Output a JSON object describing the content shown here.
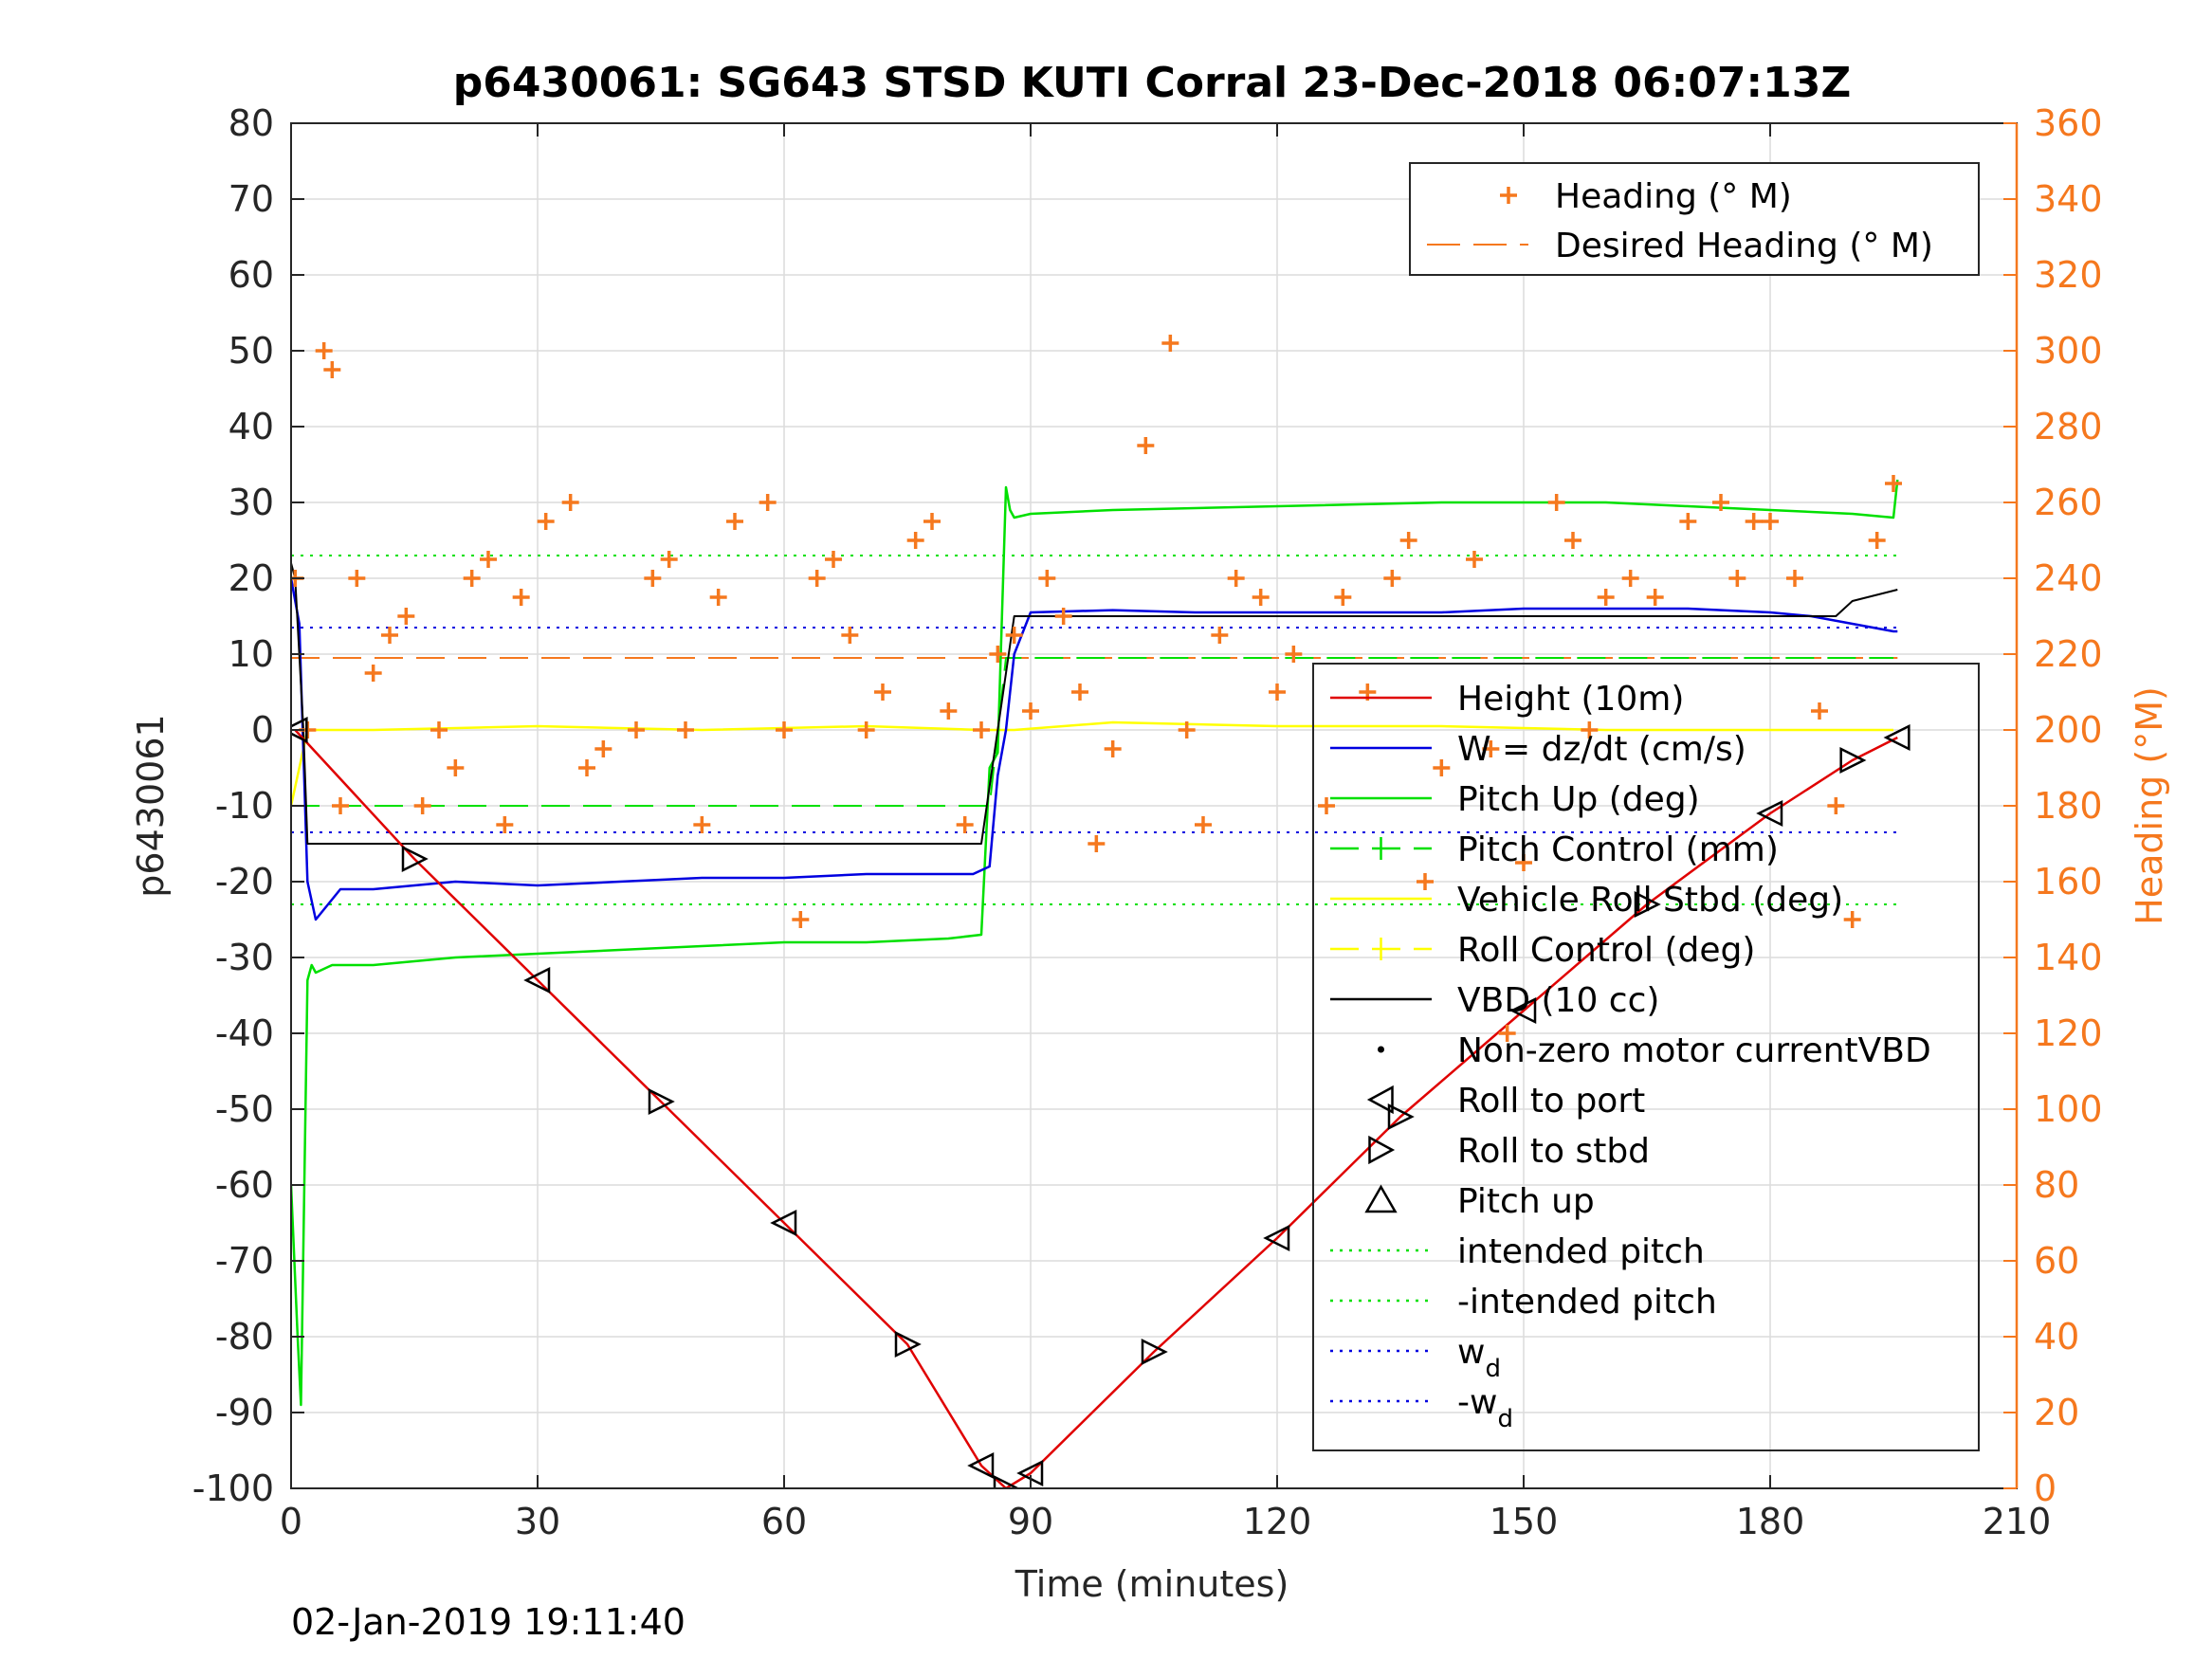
{
  "chart_data": {
    "type": "line",
    "title": "p6430061: SG643 STSD KUTI Corral 23-Dec-2018 06:07:13Z",
    "xlabel": "Time (minutes)",
    "ylabel_left": "p6430061",
    "ylabel_right": "Heading (°M)",
    "footer_timestamp": "02-Jan-2019 19:11:40",
    "xlim": [
      0,
      210
    ],
    "ylim_left": [
      -100,
      80
    ],
    "ylim_right": [
      0,
      360
    ],
    "xticks": [
      0,
      30,
      60,
      90,
      120,
      150,
      180,
      210
    ],
    "yticks_left": [
      -100,
      -90,
      -80,
      -70,
      -60,
      -50,
      -40,
      -30,
      -20,
      -10,
      0,
      10,
      20,
      30,
      40,
      50,
      60,
      70,
      80
    ],
    "yticks_right": [
      0,
      20,
      40,
      60,
      80,
      100,
      120,
      140,
      160,
      180,
      200,
      220,
      240,
      260,
      280,
      300,
      320,
      340,
      360
    ],
    "grid": true,
    "colors": {
      "heading": "#f5781e",
      "height": "#e00000",
      "w": "#0000e0",
      "pitch": "#00e000",
      "roll": "#ffff00",
      "vbd": "#000000",
      "axis_right": "#f5781e"
    },
    "legend_right_axis": {
      "placement": "top-right",
      "entries": [
        {
          "label": "Heading (° M)",
          "marker": "plus",
          "color": "#f5781e"
        },
        {
          "label": "Desired Heading (° M)",
          "marker": "dash",
          "color": "#f5781e"
        }
      ]
    },
    "legend_left_axis": {
      "placement": "right",
      "entries": [
        {
          "label": "Height (10m)",
          "style": "solid",
          "color": "#e00000"
        },
        {
          "label": "W = dz/dt (cm/s)",
          "style": "solid",
          "color": "#0000e0"
        },
        {
          "label": "Pitch Up (deg)",
          "style": "solid",
          "color": "#00e000"
        },
        {
          "label": "Pitch Control (mm)",
          "style": "dashed",
          "color": "#00e000"
        },
        {
          "label": "Vehicle Roll Stbd (deg)",
          "style": "solid",
          "color": "#ffff00"
        },
        {
          "label": "Roll Control (deg)",
          "style": "dashed",
          "color": "#ffff00"
        },
        {
          "label": "VBD (10 cc)",
          "style": "solid",
          "color": "#000000"
        },
        {
          "label": "Non-zero motor currentVBD",
          "style": "dot",
          "color": "#000000"
        },
        {
          "label": "Roll to port",
          "style": "marker-left",
          "color": "#000000"
        },
        {
          "label": "Roll to stbd",
          "style": "marker-right",
          "color": "#000000"
        },
        {
          "label": "Pitch up",
          "style": "marker-up",
          "color": "#000000"
        },
        {
          "label": "intended pitch",
          "style": "dotted",
          "color": "#00e000"
        },
        {
          "label": "-intended pitch",
          "style": "dotted",
          "color": "#00e000"
        },
        {
          "label": "w",
          "sub": "d",
          "style": "dotted",
          "color": "#0000e0"
        },
        {
          "label": "-w",
          "sub": "d",
          "style": "dotted",
          "color": "#0000e0"
        }
      ]
    },
    "reference_lines": {
      "intended_pitch": 23,
      "neg_intended_pitch": -23,
      "w_d": 13.5,
      "neg_w_d": -13.5,
      "desired_heading": 219
    },
    "series": {
      "height": {
        "x": [
          0.5,
          15,
          30,
          45,
          60,
          75,
          84,
          87,
          90,
          105,
          120,
          135,
          150,
          165,
          180,
          190,
          195.5
        ],
        "y": [
          0,
          -17,
          -33,
          -49,
          -65,
          -81,
          -97,
          -100,
          -98,
          -82,
          -67,
          -51,
          -37,
          -23,
          -11,
          -4,
          -1
        ]
      },
      "w": {
        "x": [
          0,
          1,
          2,
          3,
          6,
          10,
          20,
          30,
          40,
          50,
          60,
          70,
          80,
          83,
          85,
          86,
          87,
          88,
          90,
          100,
          110,
          120,
          130,
          140,
          150,
          160,
          170,
          180,
          185,
          190,
          195,
          195.5
        ],
        "y": [
          20,
          14,
          -20,
          -25,
          -21,
          -21,
          -20,
          -20.5,
          -20,
          -19.5,
          -19.5,
          -19,
          -19,
          -19,
          -18,
          -6,
          0,
          10,
          15.5,
          15.8,
          15.5,
          15.5,
          15.5,
          15.5,
          16,
          16,
          16,
          15.5,
          15,
          14,
          13,
          13
        ]
      },
      "pitch": {
        "x": [
          0,
          0.8,
          1.2,
          2,
          2.5,
          3,
          5,
          10,
          20,
          30,
          40,
          50,
          60,
          70,
          80,
          84,
          85,
          86,
          87,
          87.5,
          88,
          90,
          100,
          120,
          140,
          160,
          170,
          180,
          190,
          195,
          195.5
        ],
        "y": [
          -60,
          -80,
          -89,
          -33,
          -31,
          -32,
          -31,
          -31,
          -30,
          -29.5,
          -29,
          -28.5,
          -28,
          -28,
          -27.5,
          -27,
          -5,
          -3,
          32,
          29,
          28,
          28.5,
          29,
          29.5,
          30,
          30,
          29.5,
          29,
          28.5,
          28,
          33
        ]
      },
      "pitch_control": {
        "x": [
          0,
          10,
          85,
          87,
          195
        ],
        "y": [
          -10,
          -10,
          -10,
          9.5,
          9.5
        ]
      },
      "roll": {
        "x": [
          0,
          2,
          10,
          30,
          50,
          70,
          84,
          88,
          100,
          120,
          140,
          160,
          180,
          195
        ],
        "y": [
          -10,
          0,
          0,
          0.5,
          0,
          0.5,
          0,
          0,
          1,
          0.5,
          0.5,
          0,
          0,
          0
        ]
      },
      "vbd": {
        "x": [
          0,
          0.5,
          1.5,
          2,
          84,
          86,
          88,
          188,
          190,
          195.5
        ],
        "y": [
          22,
          20,
          0,
          -15,
          -15,
          0,
          15,
          15,
          17,
          18.5
        ]
      },
      "heading_pts": {
        "x": [
          0.5,
          2,
          4,
          5,
          6,
          8,
          10,
          12,
          14,
          16,
          18,
          20,
          22,
          24,
          26,
          28,
          31,
          34,
          36,
          38,
          42,
          44,
          46,
          48,
          50,
          52,
          54,
          58,
          60,
          62,
          64,
          66,
          68,
          70,
          72,
          76,
          78,
          80,
          82,
          84,
          86,
          88,
          90,
          92,
          94,
          96,
          98,
          100,
          104,
          107,
          109,
          111,
          113,
          115,
          118,
          120,
          122,
          126,
          128,
          131,
          134,
          136,
          138,
          140,
          144,
          146,
          148,
          150,
          154,
          156,
          158,
          160,
          163,
          166,
          170,
          174,
          176,
          178,
          180,
          183,
          186,
          188,
          190,
          193,
          195
        ],
        "y": [
          240,
          200,
          300,
          295,
          180,
          240,
          215,
          225,
          230,
          180,
          200,
          190,
          240,
          245,
          175,
          235,
          255,
          260,
          190,
          195,
          200,
          240,
          245,
          200,
          175,
          235,
          255,
          260,
          200,
          150,
          240,
          245,
          225,
          200,
          210,
          250,
          255,
          205,
          175,
          200,
          220,
          225,
          205,
          240,
          230,
          210,
          170,
          195,
          275,
          302,
          200,
          175,
          225,
          240,
          235,
          210,
          220,
          180,
          235,
          210,
          240,
          250,
          160,
          190,
          245,
          195,
          120,
          165,
          260,
          250,
          200,
          235,
          240,
          235,
          255,
          260,
          240,
          255,
          255,
          240,
          205,
          180,
          150,
          250,
          265
        ]
      }
    }
  }
}
